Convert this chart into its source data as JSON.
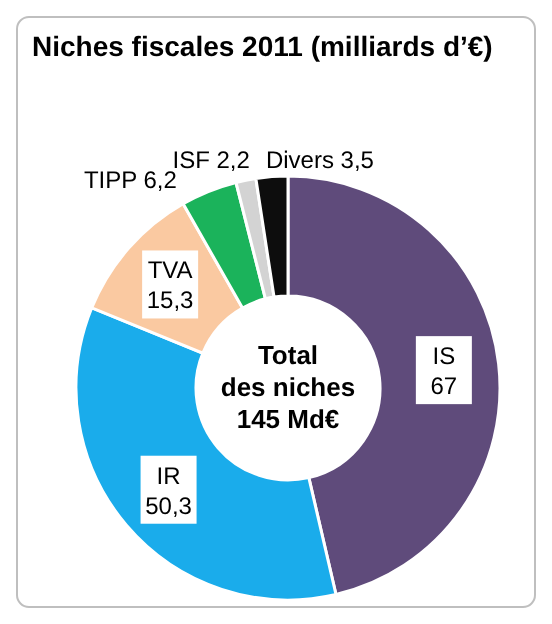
{
  "chart_data": {
    "type": "donut",
    "title": "Niches fiscales 2011 (milliards d’€)",
    "categories": [
      "IS",
      "IR",
      "TVA",
      "TIPP",
      "ISF",
      "Divers"
    ],
    "values": [
      67,
      50.3,
      15.3,
      6.2,
      2.2,
      3.5
    ],
    "colors": [
      "#5f4b7b",
      "#1aaceb",
      "#fac9a1",
      "#1bb35b",
      "#d3d3d3",
      "#0d0d0d"
    ],
    "value_labels": [
      "67",
      "50,3",
      "15,3",
      "6,2",
      "2,2",
      "3,5"
    ],
    "annotations": [
      "Total",
      "des niches",
      "145 Md€"
    ]
  }
}
